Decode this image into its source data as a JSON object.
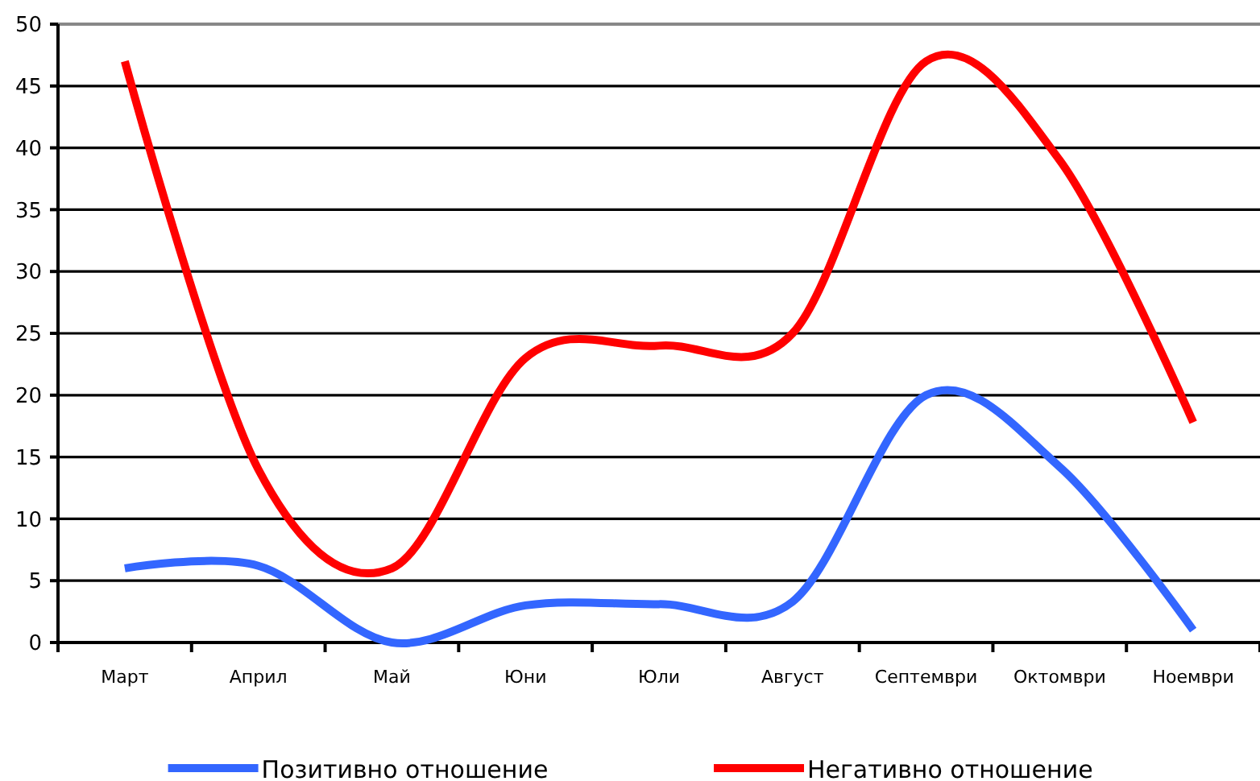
{
  "chart_data": {
    "type": "line",
    "categories": [
      "Март",
      "Април",
      "Май",
      "Юни",
      "Юли",
      "Август",
      "Септември",
      "Октомври",
      "Ноември"
    ],
    "series": [
      {
        "name": "Позитивно отношение",
        "color": "#3366ff",
        "values": [
          6,
          6.2,
          0,
          3,
          3.1,
          3.3,
          20,
          14.2,
          1
        ]
      },
      {
        "name": "Негативно отношение",
        "color": "#ff0000",
        "values": [
          47,
          14,
          6,
          23,
          24,
          25,
          47,
          39,
          17.8
        ]
      }
    ],
    "ylim": [
      0,
      50
    ],
    "yticks": [
      0,
      5,
      10,
      15,
      20,
      25,
      30,
      35,
      40,
      45,
      50
    ],
    "grid": "y",
    "legend": "bottom"
  }
}
